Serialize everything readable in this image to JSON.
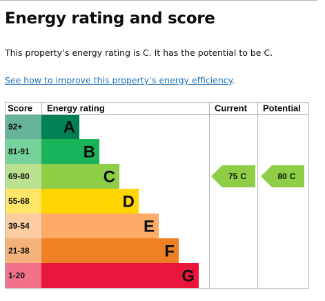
{
  "header": {
    "title": "Energy rating and score"
  },
  "intro": "This property’s energy rating is C. It has the potential to be C.",
  "link": "See how to improve this property’s energy efficiency",
  "link_suffix": ".",
  "table": {
    "headers": [
      "Score",
      "Energy rating",
      "Current",
      "Potential"
    ],
    "bands": [
      {
        "range": "92+",
        "letter": "A",
        "color": "#008054"
      },
      {
        "range": "81-91",
        "letter": "B",
        "color": "#19b459"
      },
      {
        "range": "69-80",
        "letter": "C",
        "color": "#8dce46"
      },
      {
        "range": "55-68",
        "letter": "D",
        "color": "#ffd500"
      },
      {
        "range": "39-54",
        "letter": "E",
        "color": "#fcaa65"
      },
      {
        "range": "21-38",
        "letter": "F",
        "color": "#ef8023"
      },
      {
        "range": "1-20",
        "letter": "G",
        "color": "#e9153b"
      }
    ],
    "current": {
      "score": 75,
      "band": "C"
    },
    "potential": {
      "score": 80,
      "band": "C"
    }
  }
}
